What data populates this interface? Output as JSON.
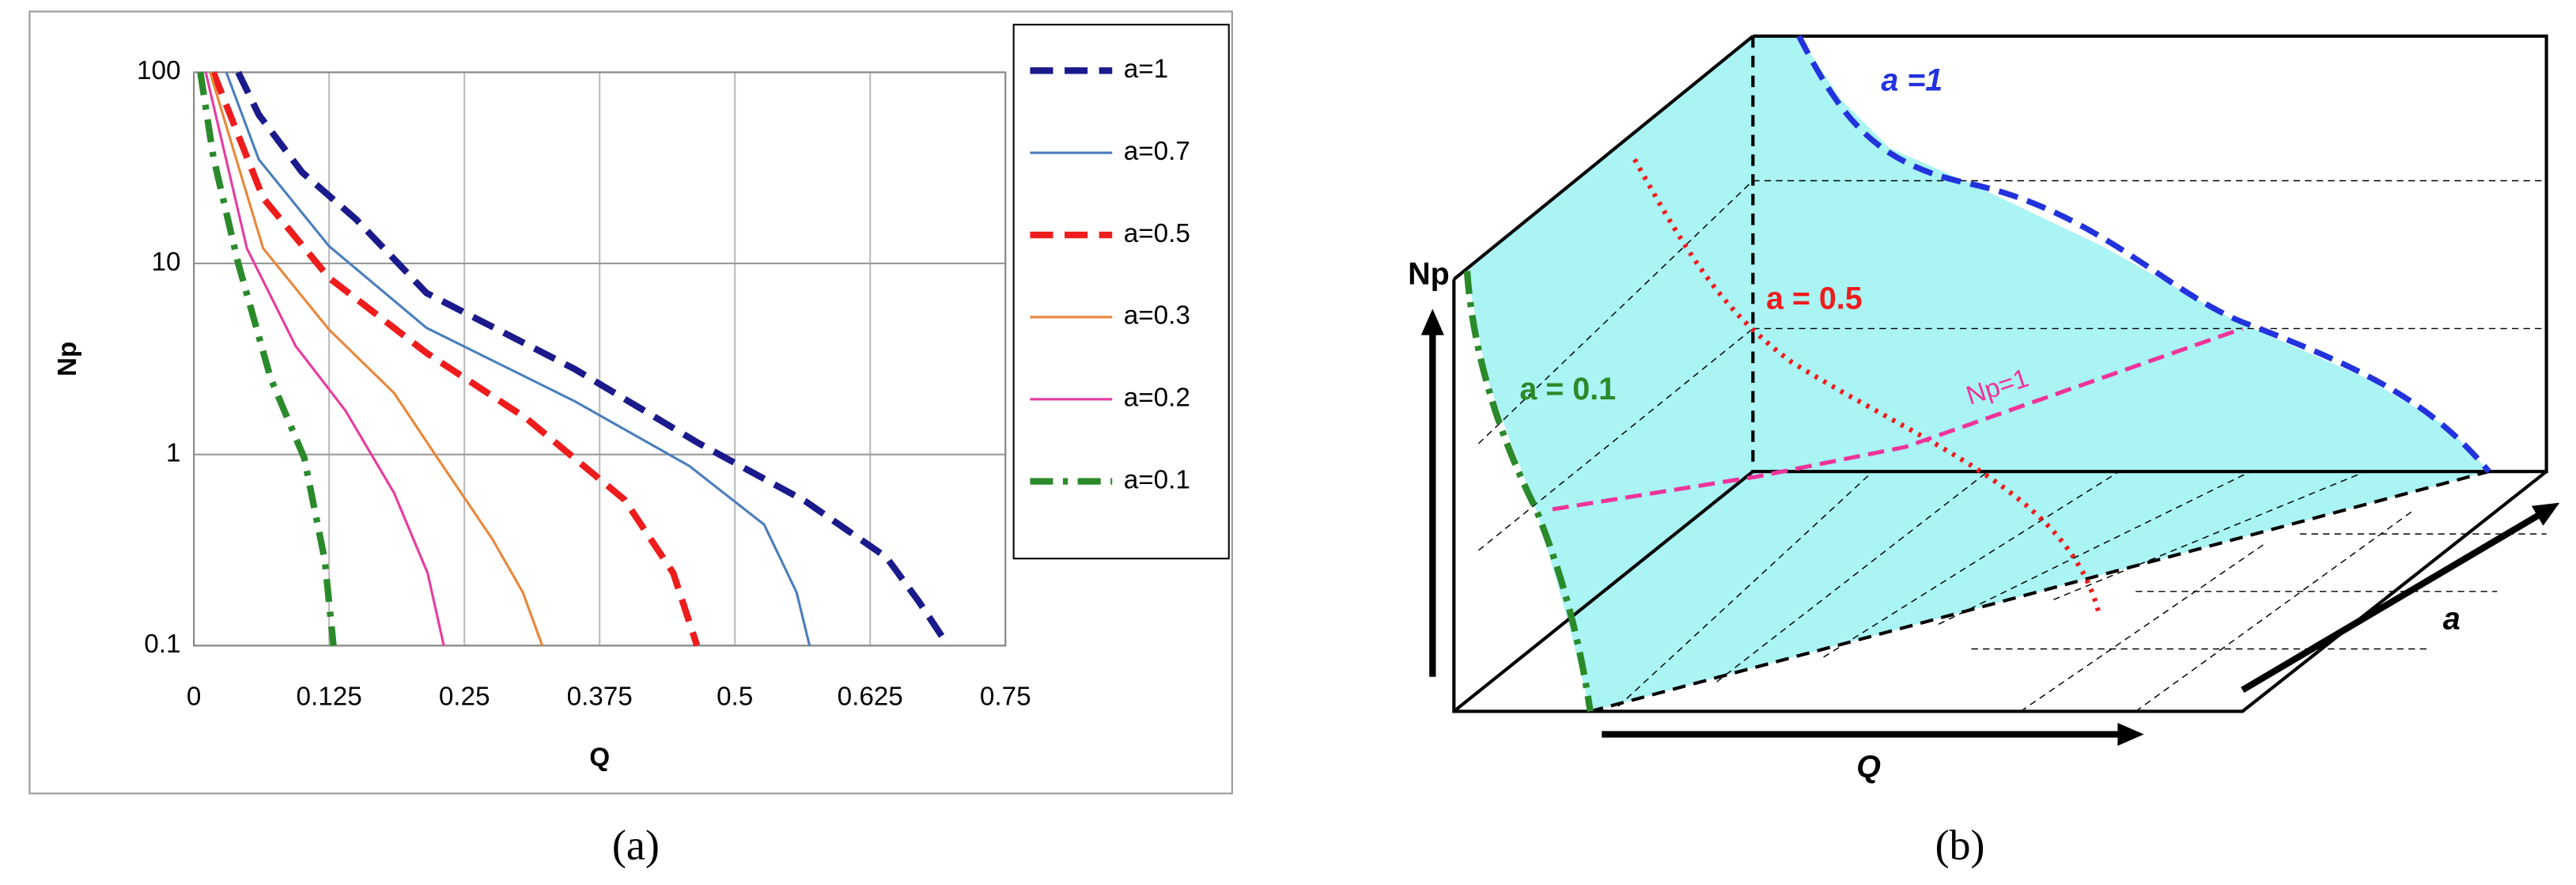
{
  "chart_data": {
    "type": "line",
    "x_label": "Q",
    "y_label": "Np",
    "log_y": true,
    "grid": true,
    "xlim": [
      0,
      0.75
    ],
    "xticks": [
      0,
      0.125,
      0.25,
      0.375,
      0.5,
      0.625,
      0.75
    ],
    "ylim": [
      0.1,
      100
    ],
    "yticks": [
      0.1,
      1,
      10,
      100
    ],
    "series": [
      {
        "name": "a=1",
        "color": "#1a1a8c",
        "style": "dash",
        "x": [
          0.041,
          0.06,
          0.1,
          0.15,
          0.215,
          0.352,
          0.466,
          0.565,
          0.64,
          0.67,
          0.697
        ],
        "values": [
          100,
          60,
          30,
          17,
          7,
          2.8,
          1.15,
          0.57,
          0.29,
          0.17,
          0.1
        ]
      },
      {
        "name": "a=0.7",
        "color": "#4a7ebb",
        "style": "solid",
        "x": [
          0.03,
          0.06,
          0.125,
          0.215,
          0.352,
          0.458,
          0.527,
          0.557,
          0.569
        ],
        "values": [
          100,
          35,
          12.3,
          4.6,
          1.9,
          0.87,
          0.43,
          0.19,
          0.1
        ]
      },
      {
        "name": "a=0.5",
        "color": "#ee1c1c",
        "style": "dash",
        "x": [
          0.018,
          0.064,
          0.125,
          0.215,
          0.307,
          0.398,
          0.443,
          0.465
        ],
        "values": [
          100,
          22,
          8.4,
          3.4,
          1.55,
          0.58,
          0.24,
          0.1
        ]
      },
      {
        "name": "a=0.3",
        "color": "#e8873a",
        "style": "solid",
        "x": [
          0.015,
          0.064,
          0.125,
          0.185,
          0.223,
          0.276,
          0.304,
          0.322
        ],
        "values": [
          100,
          12,
          4.5,
          2.1,
          1,
          0.36,
          0.19,
          0.1
        ]
      },
      {
        "name": "a=0.2",
        "color": "#e63ca0",
        "style": "solid",
        "x": [
          0.011,
          0.049,
          0.094,
          0.14,
          0.185,
          0.216,
          0.231
        ],
        "values": [
          100,
          12,
          3.7,
          1.7,
          0.63,
          0.24,
          0.1
        ]
      },
      {
        "name": "a=0.1",
        "color": "#2a8a2a",
        "style": "dashdot",
        "x": [
          0.006,
          0.018,
          0.041,
          0.071,
          0.102,
          0.121,
          0.129
        ],
        "values": [
          100,
          36,
          10,
          2.5,
          0.96,
          0.28,
          0.1
        ]
      }
    ]
  },
  "diagram": {
    "axis_np": "Np",
    "label_a01": "a = 0.1",
    "label_a05": "a = 0.5",
    "label_a1": "a =1",
    "label_np1": "Np=1",
    "axis_q": "Q",
    "axis_a": "a"
  },
  "captions": [
    "(a)",
    "(b)"
  ]
}
